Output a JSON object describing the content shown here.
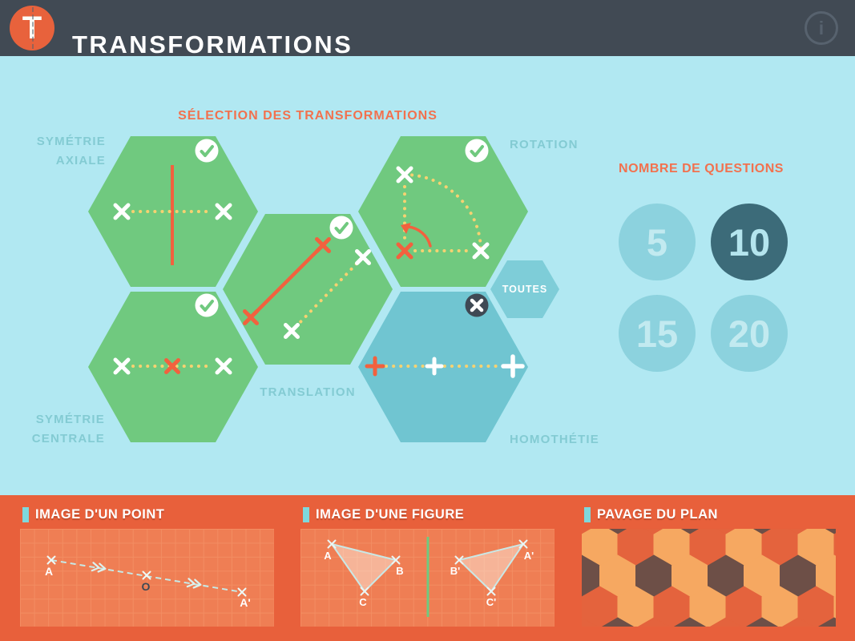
{
  "header": {
    "title": "TRANSFORMATIONS",
    "logo_letter": "T",
    "info_glyph": "i"
  },
  "selection": {
    "heading": "SÉLECTION DES TRANSFORMATIONS",
    "hexagons": [
      {
        "id": "symetrie-axiale",
        "label_lines": [
          "SYMÉTRIE",
          "AXIALE"
        ],
        "selected": true
      },
      {
        "id": "rotation",
        "label_lines": [
          "ROTATION"
        ],
        "selected": true
      },
      {
        "id": "translation",
        "label_lines": [
          "TRANSLATION"
        ],
        "selected": true
      },
      {
        "id": "symetrie-centrale",
        "label_lines": [
          "SYMÉTRIE",
          "CENTRALE"
        ],
        "selected": true
      },
      {
        "id": "homothetie",
        "label_lines": [
          "HOMOTHÉTIE"
        ],
        "selected": false
      },
      {
        "id": "toutes",
        "label": "TOUTES"
      }
    ]
  },
  "questions": {
    "heading": "NOMBRE DE QUESTIONS",
    "options": [
      {
        "value": "5",
        "selected": false
      },
      {
        "value": "10",
        "selected": true
      },
      {
        "value": "15",
        "selected": false
      },
      {
        "value": "20",
        "selected": false
      }
    ]
  },
  "panels": [
    {
      "title": "IMAGE D'UN POINT",
      "points": [
        "A",
        "O",
        "A'"
      ]
    },
    {
      "title": "IMAGE D'UNE FIGURE",
      "points": [
        "A",
        "B",
        "C",
        "B'",
        "A'",
        "C'"
      ]
    },
    {
      "title": "PAVAGE DU PLAN"
    }
  ],
  "colors": {
    "header_dark": "#414A54",
    "bg_cyan": "#B1E8F2",
    "accent_orange": "#F2714E",
    "motif_orange": "#F2613E",
    "dot_yellow": "#F6D271",
    "hex_green": "#70C97F",
    "hex_blue": "#70C5D1",
    "hex_toutes": "#7ECDD8",
    "badge_dark": "#3F4954",
    "label_teal": "#83CBD3",
    "white": "#FFFFFF",
    "circle_teal": "#8CD2DE",
    "circle_dark": "#3C6B79",
    "bar_orange": "#E8603B",
    "panel_orange": "#EF7E54",
    "grid_orange": "#F38D62",
    "line_cyan": "#C6E9E6",
    "figure_green": "#6FCA7F",
    "figure_fill": "rgba(255,246,236,0.45)",
    "pavage_light": "#F6A861",
    "pavage_red": "#E4633D",
    "pavage_brown": "#6D4F47"
  }
}
